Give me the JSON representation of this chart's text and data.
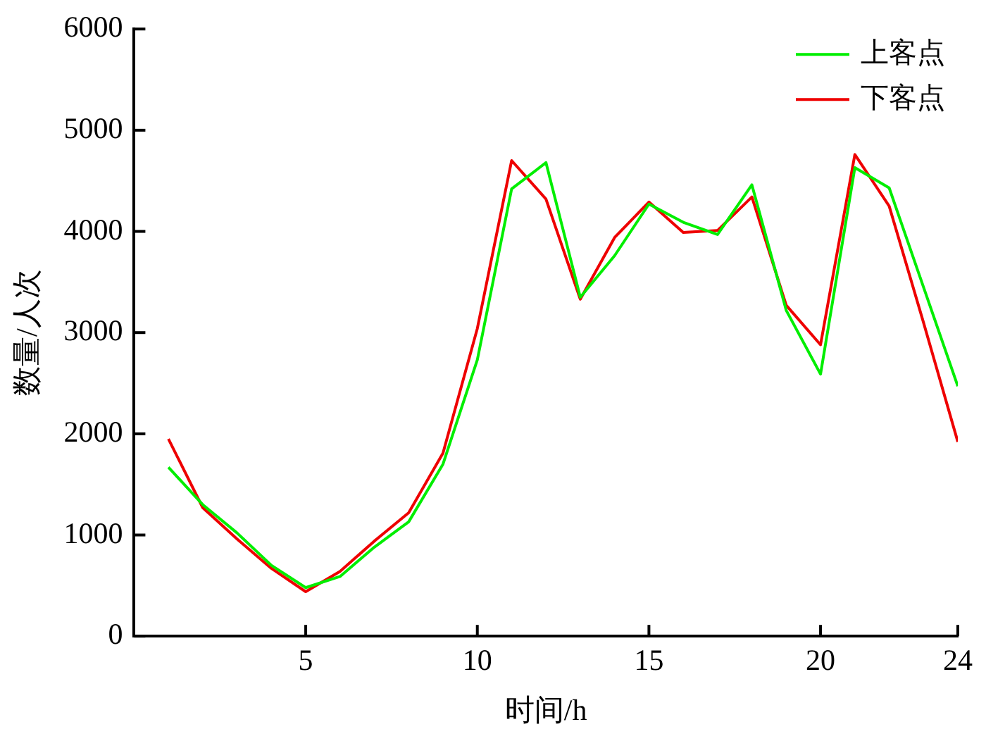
{
  "chart_data": {
    "type": "line",
    "xlabel": "时间/h",
    "ylabel": "数量/人次",
    "x": [
      1,
      2,
      3,
      4,
      5,
      6,
      7,
      8,
      9,
      10,
      11,
      12,
      13,
      14,
      15,
      16,
      17,
      18,
      19,
      20,
      21,
      22,
      23,
      24
    ],
    "series": [
      {
        "name": "上客点",
        "color": "#00ee00",
        "values": [
          1670,
          1300,
          1020,
          700,
          480,
          590,
          880,
          1130,
          1700,
          2730,
          4420,
          4680,
          3350,
          3760,
          4270,
          4090,
          3970,
          4460,
          3220,
          2590,
          4630,
          4430,
          3450,
          2470
        ]
      },
      {
        "name": "下客点",
        "color": "#ee0000",
        "values": [
          1950,
          1270,
          960,
          670,
          440,
          640,
          940,
          1220,
          1810,
          3040,
          4700,
          4320,
          3330,
          3940,
          4290,
          3990,
          4010,
          4340,
          3270,
          2880,
          4760,
          4250,
          3100,
          1920
        ]
      }
    ],
    "xlim": [
      0,
      24
    ],
    "xticks": [
      5,
      10,
      15,
      20,
      24
    ],
    "ylim": [
      0,
      6000
    ],
    "yticks": [
      0,
      1000,
      2000,
      3000,
      4000,
      5000,
      6000
    ],
    "grid": false,
    "legend": "top right",
    "marker": "none",
    "line_style": "solid"
  }
}
